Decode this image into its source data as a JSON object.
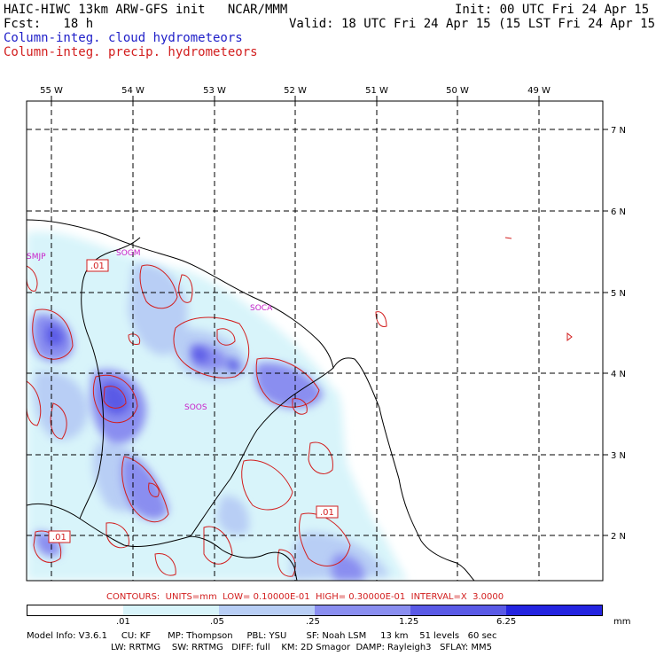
{
  "header": {
    "line1_left": "HAIC-HIWC 13km ARW-GFS init   NCAR/MMM",
    "line1_right": "Init: 00 UTC Fri 24 Apr 15",
    "line2_left": "Fcst:   18 h",
    "line2_right": "Valid: 18 UTC Fri 24 Apr 15 (15 LST Fri 24 Apr 15)",
    "field1": "Column-integ. cloud hydrometeors",
    "field2": "Column-integ. precip. hydrometeors"
  },
  "colors": {
    "cloud_field": "#1e1ec8",
    "precip_field": "#d21e1e",
    "shade1": "#d8f4fa",
    "shade2": "#b8cef5",
    "shade3": "#8a8ef0",
    "shade4": "#5a5ae6",
    "shade5": "#2424e0"
  },
  "map": {
    "lon_labels": [
      "55 W",
      "54 W",
      "53 W",
      "52 W",
      "51 W",
      "50 W",
      "49 W"
    ],
    "lat_labels": [
      "7 N",
      "6 N",
      "5 N",
      "4 N",
      "3 N",
      "2 N"
    ],
    "stations": [
      "SMJP",
      "SOGM",
      "SOCA",
      "SOOS"
    ],
    "contour_labels": [
      ".01",
      ".01",
      ".01"
    ]
  },
  "footer": {
    "contours_line": "CONTOURS:  UNITS=mm  LOW= 0.10000E-01  HIGH= 0.30000E-01  INTERVAL=X  3.0000",
    "legend_ticks": [
      ".01",
      ".05",
      ".25",
      "1.25",
      "6.25"
    ],
    "legend_unit": "mm",
    "model_info_1": "Model Info: V3.6.1     CU: KF      MP: Thompson     PBL: YSU       SF: Noah LSM     13 km    51 levels   60 sec",
    "model_info_2": "LW: RRTMG    SW: RRTMG   DIFF: full    KM: 2D Smagor  DAMP: Rayleigh3   SFLAY: MM5"
  }
}
